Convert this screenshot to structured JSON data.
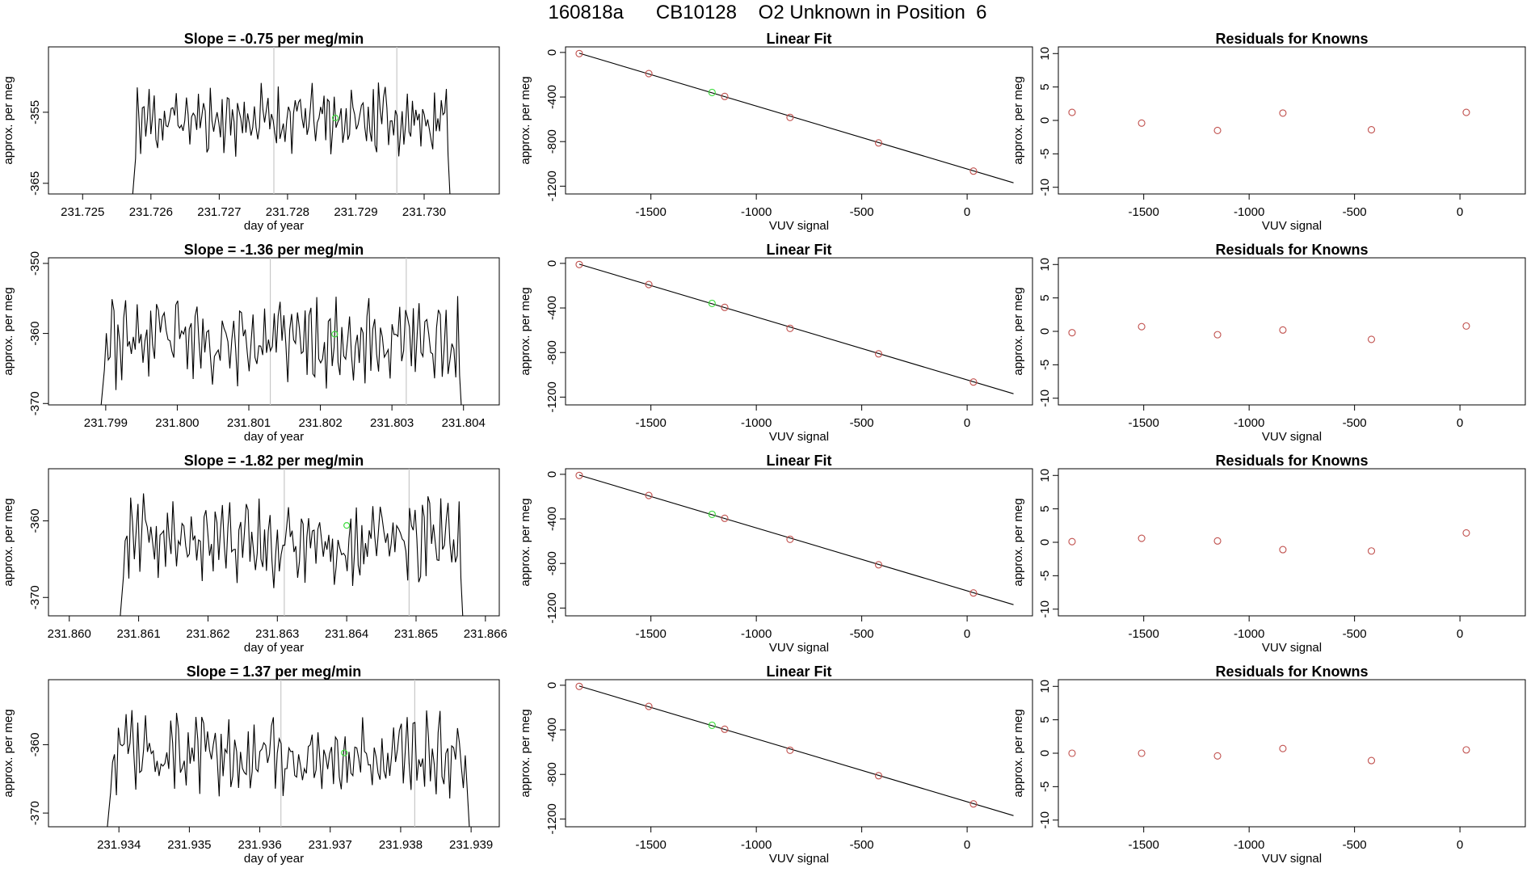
{
  "figure": {
    "title": "160818a      CB10128    O2 Unknown in Position  6"
  },
  "colors": {
    "line": "#000000",
    "known_point": "#c0504d",
    "unknown_point": "#3ddc3d",
    "refline": "#c8c8c8"
  },
  "chart_data": [
    {
      "type": "line",
      "panel": "timeseries",
      "row": 1,
      "title": "Slope =  -0.75  per meg/min",
      "xlabel": "day of year",
      "ylabel": "approx. per meg",
      "xlim": [
        231.7245,
        231.7311
      ],
      "ylim": [
        -366.5,
        -345.8
      ],
      "xticks": [
        231.725,
        231.726,
        231.727,
        231.728,
        231.729,
        231.73
      ],
      "xtick_labels": [
        "231.725",
        "231.726",
        "231.727",
        "231.728",
        "231.729",
        "231.730"
      ],
      "yticks": [
        -365,
        -355
      ],
      "ytick_labels": [
        "-365",
        "-355"
      ],
      "xstart": 231.7257,
      "xend": 231.7304,
      "n": 190,
      "mean": -356,
      "amp": 3.5,
      "seed": 11,
      "vlines": [
        231.7278,
        231.7296
      ],
      "unknown_point": [
        231.7287,
        -355.8
      ]
    },
    {
      "type": "scatter",
      "panel": "fit",
      "row": 1,
      "title": "Linear Fit",
      "xlabel": "VUV signal",
      "ylabel": "approx. per meg",
      "xlim": [
        -1905,
        310
      ],
      "ylim": [
        -1270,
        50
      ],
      "xticks": [
        -1500,
        -1000,
        -500,
        0
      ],
      "xtick_labels": [
        "-1500",
        "-1000",
        "-500",
        "0"
      ],
      "yticks": [
        0,
        -400,
        -800,
        -1200
      ],
      "ytick_labels": [
        "0",
        "-400",
        "-800",
        "-1200"
      ],
      "knowns_x": [
        -1840,
        -1510,
        -1150,
        -840,
        -420,
        30
      ],
      "knowns_y": [
        -10,
        -190,
        -395,
        -583,
        -812,
        -1065
      ],
      "unknown": [
        -1210,
        -359
      ],
      "fit_line": [
        [
          -1840,
          -7
        ],
        [
          220,
          -1170
        ]
      ]
    },
    {
      "type": "scatter",
      "panel": "residuals",
      "row": 1,
      "title": "Residuals for Knowns",
      "xlabel": "VUV signal",
      "ylabel": "approx. per meg",
      "xlim": [
        -1905,
        310
      ],
      "ylim": [
        -11,
        11
      ],
      "xticks": [
        -1500,
        -1000,
        -500,
        0
      ],
      "xtick_labels": [
        "-1500",
        "-1000",
        "-500",
        "0"
      ],
      "yticks": [
        10,
        5,
        0,
        -5,
        -10
      ],
      "ytick_labels": [
        "10",
        "5",
        "0",
        "-5",
        "-10"
      ],
      "x": [
        -1840,
        -1510,
        -1150,
        -840,
        -420,
        30
      ],
      "y": [
        1.2,
        -0.4,
        -1.5,
        1.1,
        -1.4,
        1.2
      ]
    },
    {
      "type": "line",
      "panel": "timeseries",
      "row": 2,
      "title": "Slope =  -1.36  per meg/min",
      "xlabel": "day of year",
      "ylabel": "approx. per meg",
      "xlim": [
        231.7982,
        231.8045
      ],
      "ylim": [
        -370.2,
        -349.2
      ],
      "xticks": [
        231.799,
        231.8,
        231.801,
        231.802,
        231.803,
        231.804
      ],
      "xtick_labels": [
        "231.799",
        "231.800",
        "231.801",
        "231.802",
        "231.803",
        "231.804"
      ],
      "yticks": [
        -350,
        -360,
        -370
      ],
      "ytick_labels": [
        "-350",
        "-360",
        "-370"
      ],
      "xstart": 231.7989,
      "xend": 231.804,
      "n": 190,
      "mean": -361,
      "amp": 4.5,
      "seed": 23,
      "vlines": [
        231.8013,
        231.8032
      ],
      "unknown_point": [
        231.8022,
        -360.1
      ]
    },
    {
      "type": "scatter",
      "panel": "fit",
      "row": 2,
      "title": "Linear Fit",
      "xlabel": "VUV signal",
      "ylabel": "approx. per meg",
      "xlim": [
        -1905,
        310
      ],
      "ylim": [
        -1270,
        50
      ],
      "xticks": [
        -1500,
        -1000,
        -500,
        0
      ],
      "xtick_labels": [
        "-1500",
        "-1000",
        "-500",
        "0"
      ],
      "yticks": [
        0,
        -400,
        -800,
        -1200
      ],
      "ytick_labels": [
        "0",
        "-400",
        "-800",
        "-1200"
      ],
      "knowns_x": [
        -1840,
        -1510,
        -1150,
        -840,
        -420,
        30
      ],
      "knowns_y": [
        -10,
        -190,
        -395,
        -583,
        -812,
        -1065
      ],
      "unknown": [
        -1210,
        -359
      ],
      "fit_line": [
        [
          -1840,
          -7
        ],
        [
          220,
          -1170
        ]
      ]
    },
    {
      "type": "scatter",
      "panel": "residuals",
      "row": 2,
      "title": "Residuals for Knowns",
      "xlabel": "VUV signal",
      "ylabel": "approx. per meg",
      "xlim": [
        -1905,
        310
      ],
      "ylim": [
        -11,
        11
      ],
      "xticks": [
        -1500,
        -1000,
        -500,
        0
      ],
      "xtick_labels": [
        "-1500",
        "-1000",
        "-500",
        "0"
      ],
      "yticks": [
        10,
        5,
        0,
        -5,
        -10
      ],
      "ytick_labels": [
        "10",
        "5",
        "0",
        "-5",
        "-10"
      ],
      "x": [
        -1840,
        -1510,
        -1150,
        -840,
        -420,
        30
      ],
      "y": [
        -0.2,
        0.7,
        -0.5,
        0.2,
        -1.2,
        0.8
      ]
    },
    {
      "type": "line",
      "panel": "timeseries",
      "row": 3,
      "title": "Slope =  -1.82  per meg/min",
      "xlabel": "day of year",
      "ylabel": "approx. per meg",
      "xlim": [
        231.8597,
        231.8662
      ],
      "ylim": [
        -372.4,
        -353.2
      ],
      "xticks": [
        231.86,
        231.861,
        231.862,
        231.863,
        231.864,
        231.865,
        231.866
      ],
      "xtick_labels": [
        "231.860",
        "231.861",
        "231.862",
        "231.863",
        "231.864",
        "231.865",
        "231.866"
      ],
      "yticks": [
        -360,
        -370
      ],
      "ytick_labels": [
        "-360",
        "-370"
      ],
      "xstart": 231.8607,
      "xend": 231.8657,
      "n": 190,
      "mean": -362.5,
      "amp": 4.2,
      "seed": 37,
      "vlines": [
        231.8631,
        231.8649
      ],
      "unknown_point": [
        231.864,
        -360.6
      ]
    },
    {
      "type": "scatter",
      "panel": "fit",
      "row": 3,
      "title": "Linear Fit",
      "xlabel": "VUV signal",
      "ylabel": "approx. per meg",
      "xlim": [
        -1905,
        310
      ],
      "ylim": [
        -1270,
        50
      ],
      "xticks": [
        -1500,
        -1000,
        -500,
        0
      ],
      "xtick_labels": [
        "-1500",
        "-1000",
        "-500",
        "0"
      ],
      "yticks": [
        0,
        -400,
        -800,
        -1200
      ],
      "ytick_labels": [
        "0",
        "-400",
        "-800",
        "-1200"
      ],
      "knowns_x": [
        -1840,
        -1510,
        -1150,
        -840,
        -420,
        30
      ],
      "knowns_y": [
        -10,
        -190,
        -395,
        -583,
        -812,
        -1065
      ],
      "unknown": [
        -1210,
        -359
      ],
      "fit_line": [
        [
          -1840,
          -7
        ],
        [
          220,
          -1170
        ]
      ]
    },
    {
      "type": "scatter",
      "panel": "residuals",
      "row": 3,
      "title": "Residuals for Knowns",
      "xlabel": "VUV signal",
      "ylabel": "approx. per meg",
      "xlim": [
        -1905,
        310
      ],
      "ylim": [
        -11,
        11
      ],
      "xticks": [
        -1500,
        -1000,
        -500,
        0
      ],
      "xtick_labels": [
        "-1500",
        "-1000",
        "-500",
        "0"
      ],
      "yticks": [
        10,
        5,
        0,
        -5,
        -10
      ],
      "ytick_labels": [
        "10",
        "5",
        "0",
        "-5",
        "-10"
      ],
      "x": [
        -1840,
        -1510,
        -1150,
        -840,
        -420,
        30
      ],
      "y": [
        0.1,
        0.6,
        0.2,
        -1.1,
        -1.3,
        1.4
      ]
    },
    {
      "type": "line",
      "panel": "timeseries",
      "row": 4,
      "title": "Slope =  1.37  per meg/min",
      "xlabel": "day of year",
      "ylabel": "approx. per meg",
      "xlim": [
        231.933,
        231.9394
      ],
      "ylim": [
        -372.0,
        -350.5
      ],
      "xticks": [
        231.934,
        231.935,
        231.936,
        231.937,
        231.938,
        231.939
      ],
      "xtick_labels": [
        "231.934",
        "231.935",
        "231.936",
        "231.937",
        "231.938",
        "231.939"
      ],
      "yticks": [
        -360,
        -370
      ],
      "ytick_labels": [
        "-360",
        "-370"
      ],
      "xstart": 231.9338,
      "xend": 231.939,
      "n": 190,
      "mean": -361.5,
      "amp": 4.2,
      "seed": 53,
      "vlines": [
        231.9363,
        231.9382
      ],
      "unknown_point": [
        231.9372,
        -361.2
      ]
    },
    {
      "type": "scatter",
      "panel": "fit",
      "row": 4,
      "title": "Linear Fit",
      "xlabel": "VUV signal",
      "ylabel": "approx. per meg",
      "xlim": [
        -1905,
        310
      ],
      "ylim": [
        -1270,
        50
      ],
      "xticks": [
        -1500,
        -1000,
        -500,
        0
      ],
      "xtick_labels": [
        "-1500",
        "-1000",
        "-500",
        "0"
      ],
      "yticks": [
        0,
        -400,
        -800,
        -1200
      ],
      "ytick_labels": [
        "0",
        "-400",
        "-800",
        "-1200"
      ],
      "knowns_x": [
        -1840,
        -1510,
        -1150,
        -840,
        -420,
        30
      ],
      "knowns_y": [
        -10,
        -190,
        -395,
        -583,
        -812,
        -1065
      ],
      "unknown": [
        -1210,
        -359
      ],
      "fit_line": [
        [
          -1840,
          -7
        ],
        [
          220,
          -1170
        ]
      ]
    },
    {
      "type": "scatter",
      "panel": "residuals",
      "row": 4,
      "title": "Residuals for Knowns",
      "xlabel": "VUV signal",
      "ylabel": "approx. per meg",
      "xlim": [
        -1905,
        310
      ],
      "ylim": [
        -11,
        11
      ],
      "xticks": [
        -1500,
        -1000,
        -500,
        0
      ],
      "xtick_labels": [
        "-1500",
        "-1000",
        "-500",
        "0"
      ],
      "yticks": [
        10,
        5,
        0,
        -5,
        -10
      ],
      "ytick_labels": [
        "10",
        "5",
        "0",
        "-5",
        "-10"
      ],
      "x": [
        -1840,
        -1510,
        -1150,
        -840,
        -420,
        30
      ],
      "y": [
        0.0,
        0.0,
        -0.4,
        0.7,
        -1.1,
        0.5
      ]
    }
  ]
}
